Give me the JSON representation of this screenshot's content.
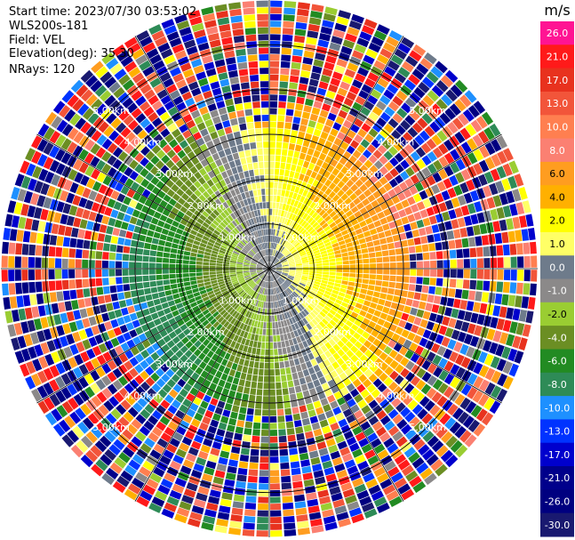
{
  "info": {
    "start_time": "Start time: 2023/07/30 03:53:02",
    "instrument": "WLS200s-181",
    "field": "Field: VEL",
    "elevation": "Elevation(deg): 35.30",
    "nrays": "NRays: 120"
  },
  "chart_data": {
    "type": "heatmap",
    "projection": "polar-ppi",
    "field": "VEL",
    "n_rays": 120,
    "range_max_km": 6.0,
    "range_rings_km": [
      1.0,
      2.0,
      3.0,
      4.0,
      5.0
    ],
    "range_ring_labels": [
      "1.00km",
      "2.00km",
      "3.00km",
      "4.00km",
      "5.00km"
    ],
    "grid": true,
    "pattern": {
      "negative_sector_center_deg": 250,
      "velocity_gradient_per_km": 2.6,
      "valid_range_km": 3.1,
      "noise_beyond_km": 3.8
    },
    "colorbar": {
      "unit": "m/s",
      "ticks": [
        "26.0",
        "21.0",
        "17.0",
        "13.0",
        "10.0",
        "8.0",
        "6.0",
        "4.0",
        "2.0",
        "1.0",
        "0.0",
        "-1.0",
        "-2.0",
        "-4.0",
        "-6.0",
        "-8.0",
        "-10.0",
        "-13.0",
        "-17.0",
        "-21.0",
        "-26.0",
        "-30.0"
      ],
      "colors": [
        "#ff1493",
        "#ff1a1a",
        "#e8321e",
        "#f2553a",
        "#ff7f50",
        "#fb8072",
        "#ff9d20",
        "#ffb000",
        "#ffff00",
        "#ffff66",
        "#6e7b8b",
        "#8b8989",
        "#9acd32",
        "#6b8e23",
        "#228b22",
        "#2e8b57",
        "#1e90ff",
        "#0033ff",
        "#0000cd",
        "#00008b",
        "#000080",
        "#191970"
      ]
    }
  }
}
